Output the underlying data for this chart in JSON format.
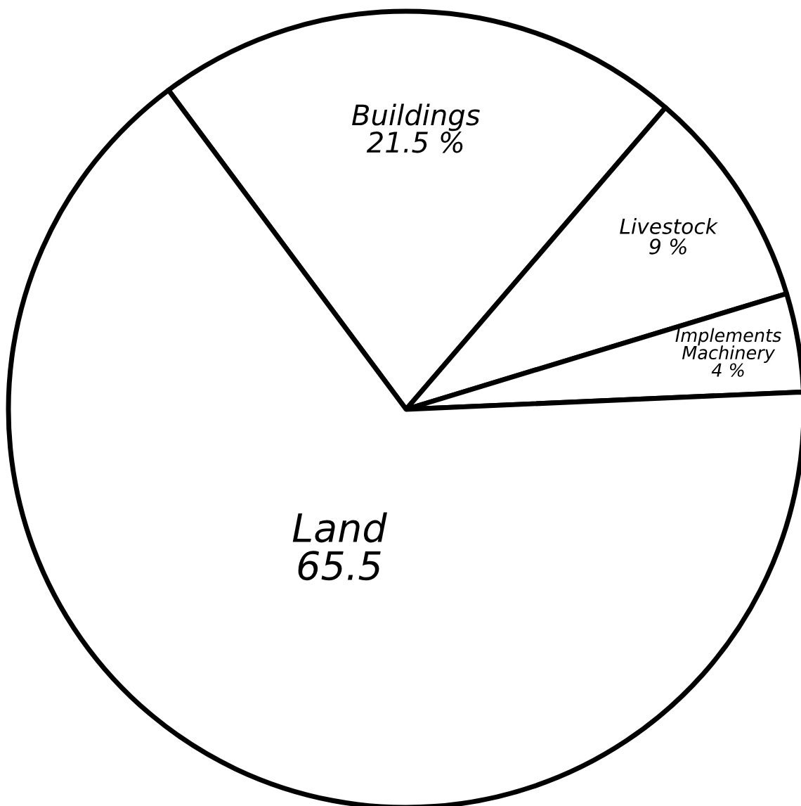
{
  "chart_data": {
    "type": "pie",
    "categories": [
      "Buildings",
      "Livestock",
      "Implements\nMachinery",
      "Land"
    ],
    "values": [
      21.5,
      9,
      4,
      65.5
    ],
    "value_labels": [
      "21.5 %",
      "9 %",
      "4 %",
      "65.5"
    ],
    "colors": [
      "#ffffff",
      "#ffffff",
      "#ffffff",
      "#ffffff"
    ],
    "legend": false
  }
}
